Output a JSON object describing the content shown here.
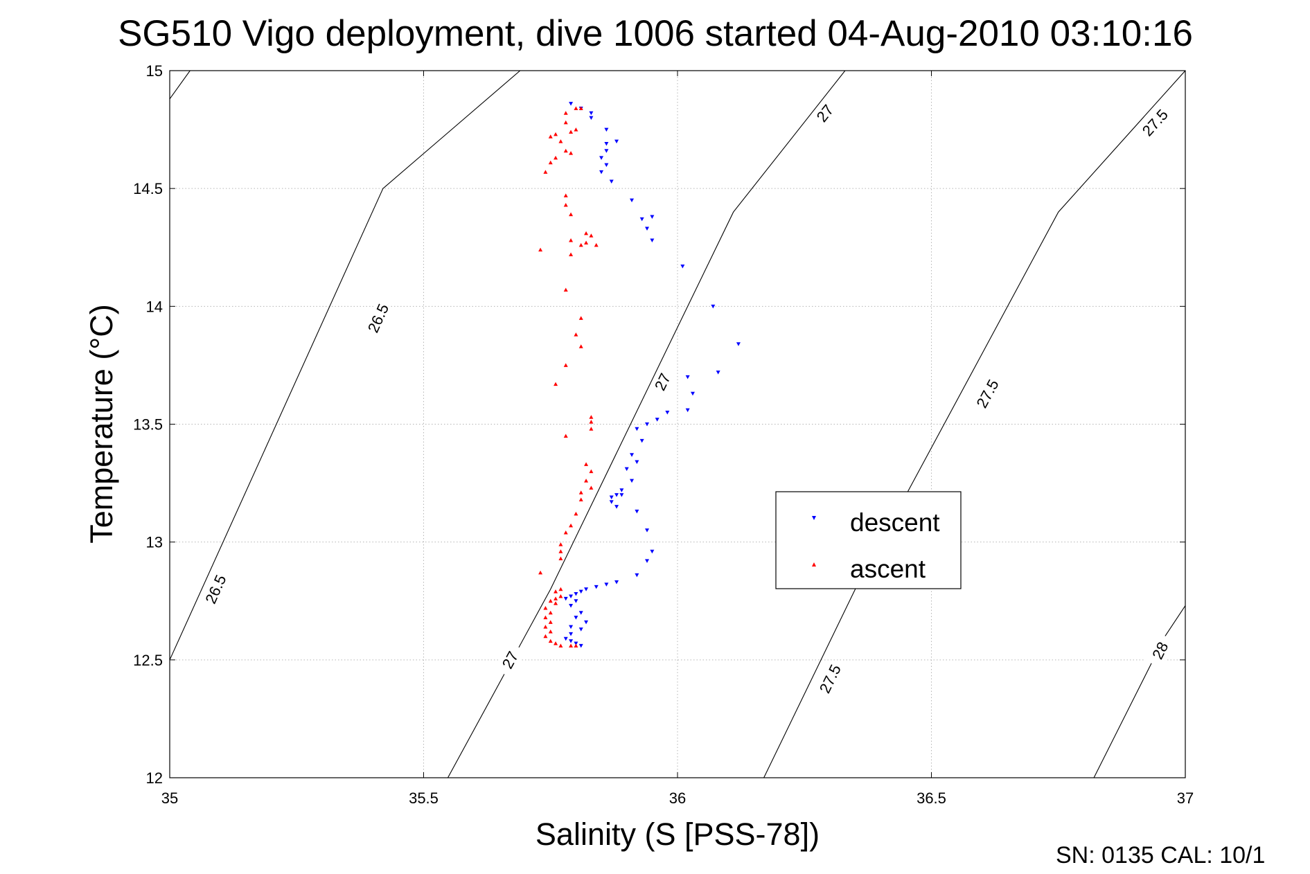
{
  "chart_data": {
    "type": "scatter",
    "title": "SG510 Vigo deployment, dive 1006 started 04-Aug-2010 03:10:16",
    "xlabel": "Salinity (S [PSS-78])",
    "ylabel": "Temperature (°C)",
    "xlim": [
      35,
      37
    ],
    "ylim": [
      12,
      15
    ],
    "x_ticks": [
      "35",
      "35.5",
      "36",
      "36.5",
      "37"
    ],
    "y_ticks": [
      "12",
      "12.5",
      "13",
      "13.5",
      "14",
      "14.5",
      "15"
    ],
    "grid": true,
    "legend_position": "center-right",
    "footer": "SN: 0135  CAL: 10/1",
    "contours": [
      {
        "level": "26.5",
        "points": [
          [
            35.0,
            12.5
          ],
          [
            35.42,
            14.5
          ],
          [
            35.69,
            15.0
          ]
        ],
        "labels": [
          [
            35.09,
            12.8
          ],
          [
            35.41,
            13.95
          ]
        ]
      },
      {
        "level": "26.5",
        "points": [
          [
            35.0,
            14.88
          ],
          [
            35.04,
            15.0
          ]
        ],
        "labels": []
      },
      {
        "level": "27",
        "points": [
          [
            35.53,
            11.93
          ],
          [
            35.75,
            12.8
          ],
          [
            36.11,
            14.4
          ],
          [
            36.33,
            15.0
          ]
        ],
        "labels": [
          [
            35.67,
            12.5
          ],
          [
            35.97,
            13.68
          ],
          [
            36.29,
            14.82
          ]
        ]
      },
      {
        "level": "27.5",
        "points": [
          [
            36.17,
            12.0
          ],
          [
            36.35,
            12.8
          ],
          [
            36.75,
            14.4
          ],
          [
            37.0,
            15.0
          ]
        ],
        "labels": [
          [
            36.3,
            12.42
          ],
          [
            36.61,
            13.63
          ],
          [
            36.94,
            14.78
          ]
        ]
      },
      {
        "level": "28",
        "points": [
          [
            36.82,
            12.0
          ],
          [
            36.96,
            12.6
          ],
          [
            37.0,
            12.73
          ]
        ],
        "labels": [
          [
            36.95,
            12.54
          ]
        ]
      }
    ],
    "series": [
      {
        "name": "descent",
        "color": "#0000ff",
        "marker": "triangle-down",
        "points": [
          [
            35.79,
            14.86
          ],
          [
            35.81,
            14.84
          ],
          [
            35.83,
            14.82
          ],
          [
            35.83,
            14.8
          ],
          [
            35.86,
            14.75
          ],
          [
            35.88,
            14.7
          ],
          [
            35.86,
            14.69
          ],
          [
            35.86,
            14.66
          ],
          [
            35.85,
            14.63
          ],
          [
            35.86,
            14.6
          ],
          [
            35.85,
            14.57
          ],
          [
            35.87,
            14.53
          ],
          [
            35.91,
            14.45
          ],
          [
            35.93,
            14.37
          ],
          [
            35.95,
            14.38
          ],
          [
            35.94,
            14.33
          ],
          [
            35.95,
            14.28
          ],
          [
            36.01,
            14.17
          ],
          [
            36.07,
            14.0
          ],
          [
            36.12,
            13.84
          ],
          [
            36.08,
            13.72
          ],
          [
            36.02,
            13.7
          ],
          [
            36.03,
            13.63
          ],
          [
            36.02,
            13.56
          ],
          [
            35.98,
            13.55
          ],
          [
            35.96,
            13.52
          ],
          [
            35.94,
            13.5
          ],
          [
            35.92,
            13.48
          ],
          [
            35.93,
            13.43
          ],
          [
            35.91,
            13.37
          ],
          [
            35.92,
            13.34
          ],
          [
            35.9,
            13.31
          ],
          [
            35.91,
            13.26
          ],
          [
            35.89,
            13.22
          ],
          [
            35.89,
            13.2
          ],
          [
            35.88,
            13.2
          ],
          [
            35.87,
            13.19
          ],
          [
            35.87,
            13.17
          ],
          [
            35.88,
            13.15
          ],
          [
            35.92,
            13.13
          ],
          [
            35.94,
            13.05
          ],
          [
            35.95,
            12.96
          ],
          [
            35.94,
            12.92
          ],
          [
            35.92,
            12.86
          ],
          [
            35.88,
            12.83
          ],
          [
            35.86,
            12.82
          ],
          [
            35.84,
            12.81
          ],
          [
            35.82,
            12.8
          ],
          [
            35.81,
            12.79
          ],
          [
            35.8,
            12.78
          ],
          [
            35.79,
            12.77
          ],
          [
            35.78,
            12.76
          ],
          [
            35.8,
            12.75
          ],
          [
            35.79,
            12.73
          ],
          [
            35.81,
            12.7
          ],
          [
            35.8,
            12.68
          ],
          [
            35.82,
            12.66
          ],
          [
            35.79,
            12.64
          ],
          [
            35.81,
            12.63
          ],
          [
            35.79,
            12.61
          ],
          [
            35.78,
            12.59
          ],
          [
            35.79,
            12.58
          ],
          [
            35.8,
            12.57
          ],
          [
            35.81,
            12.56
          ]
        ]
      },
      {
        "name": "ascent",
        "color": "#ff0000",
        "marker": "triangle-up",
        "points": [
          [
            35.8,
            14.84
          ],
          [
            35.81,
            14.84
          ],
          [
            35.78,
            14.82
          ],
          [
            35.78,
            14.78
          ],
          [
            35.8,
            14.75
          ],
          [
            35.79,
            14.74
          ],
          [
            35.76,
            14.73
          ],
          [
            35.75,
            14.72
          ],
          [
            35.77,
            14.7
          ],
          [
            35.78,
            14.66
          ],
          [
            35.79,
            14.65
          ],
          [
            35.76,
            14.63
          ],
          [
            35.75,
            14.61
          ],
          [
            35.74,
            14.57
          ],
          [
            35.78,
            14.47
          ],
          [
            35.78,
            14.43
          ],
          [
            35.79,
            14.39
          ],
          [
            35.82,
            14.31
          ],
          [
            35.83,
            14.3
          ],
          [
            35.79,
            14.28
          ],
          [
            35.82,
            14.27
          ],
          [
            35.84,
            14.26
          ],
          [
            35.81,
            14.26
          ],
          [
            35.73,
            14.24
          ],
          [
            35.79,
            14.22
          ],
          [
            35.78,
            14.07
          ],
          [
            35.81,
            13.95
          ],
          [
            35.8,
            13.88
          ],
          [
            35.81,
            13.83
          ],
          [
            35.78,
            13.75
          ],
          [
            35.76,
            13.67
          ],
          [
            35.83,
            13.53
          ],
          [
            35.83,
            13.51
          ],
          [
            35.83,
            13.48
          ],
          [
            35.78,
            13.45
          ],
          [
            35.82,
            13.33
          ],
          [
            35.83,
            13.3
          ],
          [
            35.82,
            13.26
          ],
          [
            35.83,
            13.23
          ],
          [
            35.81,
            13.21
          ],
          [
            35.81,
            13.18
          ],
          [
            35.8,
            13.12
          ],
          [
            35.79,
            13.07
          ],
          [
            35.78,
            13.04
          ],
          [
            35.77,
            12.99
          ],
          [
            35.77,
            12.96
          ],
          [
            35.77,
            12.93
          ],
          [
            35.73,
            12.87
          ],
          [
            35.77,
            12.8
          ],
          [
            35.76,
            12.79
          ],
          [
            35.77,
            12.77
          ],
          [
            35.76,
            12.76
          ],
          [
            35.75,
            12.75
          ],
          [
            35.76,
            12.74
          ],
          [
            35.74,
            12.72
          ],
          [
            35.75,
            12.7
          ],
          [
            35.74,
            12.68
          ],
          [
            35.75,
            12.66
          ],
          [
            35.74,
            12.64
          ],
          [
            35.75,
            12.62
          ],
          [
            35.74,
            12.6
          ],
          [
            35.75,
            12.58
          ],
          [
            35.76,
            12.57
          ],
          [
            35.77,
            12.56
          ],
          [
            35.79,
            12.56
          ],
          [
            35.8,
            12.56
          ]
        ]
      }
    ]
  }
}
